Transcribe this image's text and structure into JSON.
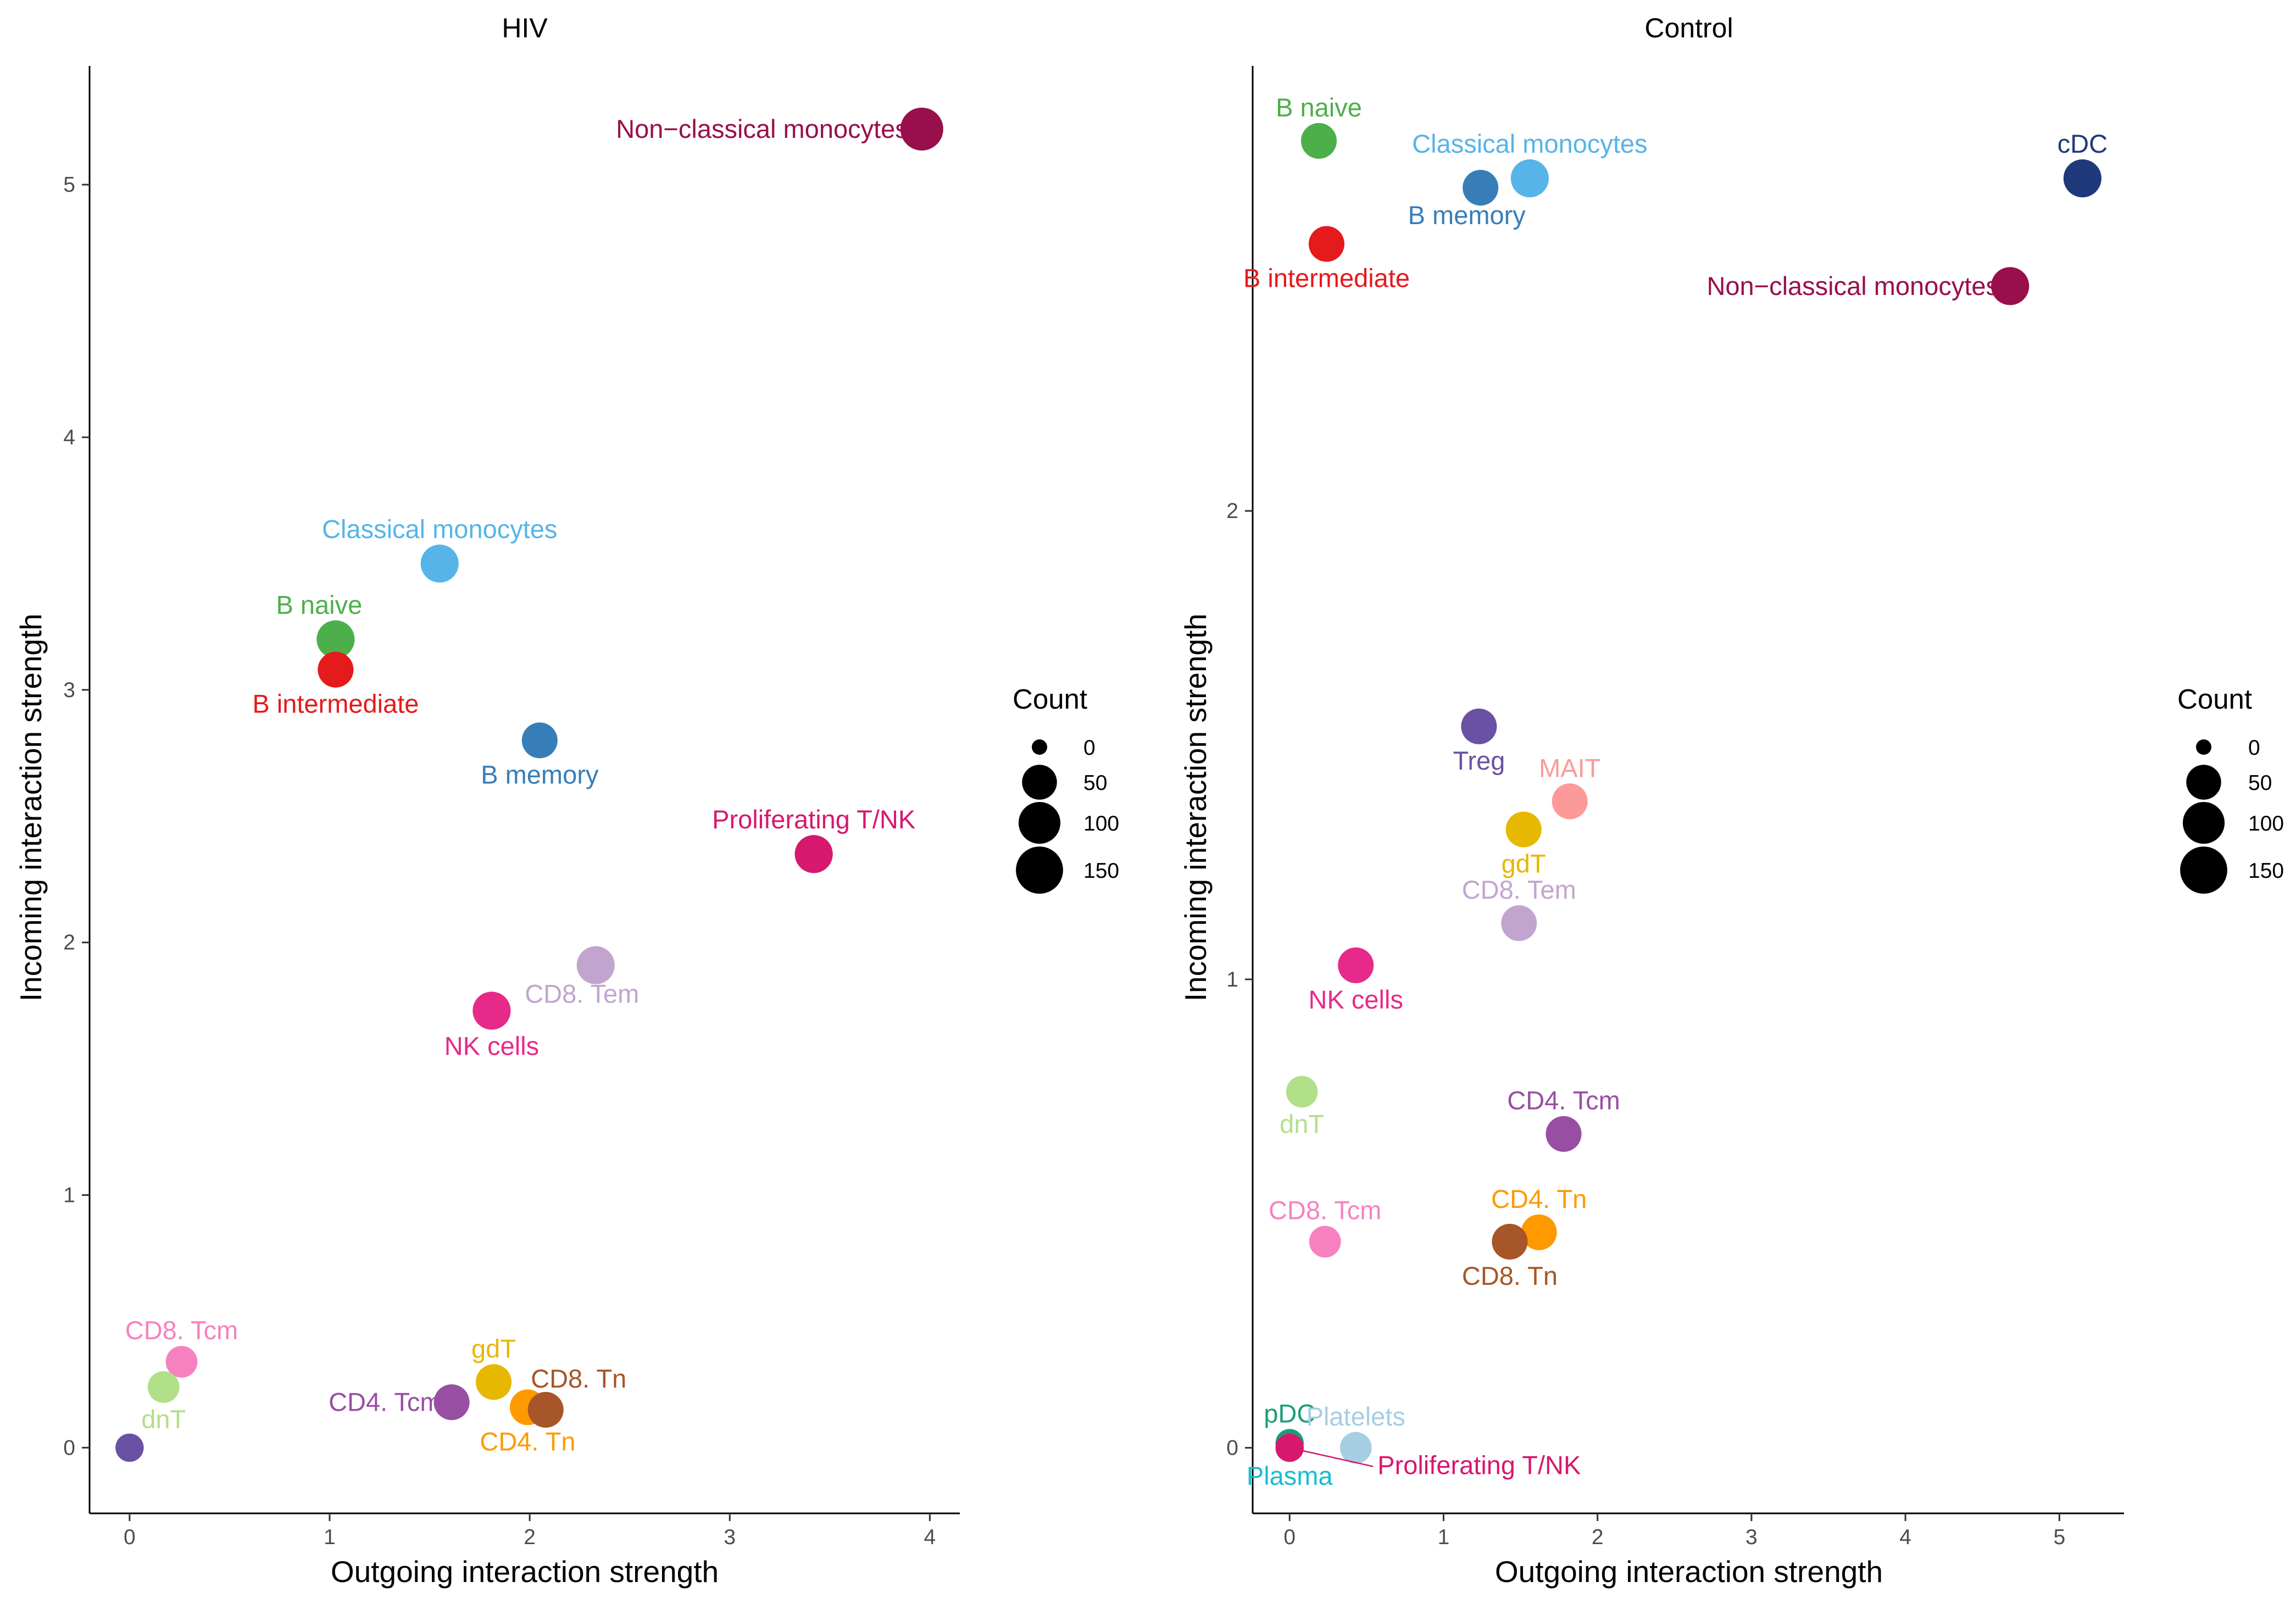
{
  "chart_data": [
    {
      "type": "scatter",
      "title": "HIV",
      "xlabel": "Outgoing interaction strength",
      "ylabel": "Incoming interaction strength",
      "xlim": [
        -0.2,
        4.15
      ],
      "ylim": [
        -0.26,
        5.47
      ],
      "x_ticks": [
        0,
        1,
        2,
        3,
        4
      ],
      "y_ticks": [
        0,
        1,
        2,
        3,
        4,
        5
      ],
      "points": [
        {
          "name": "Non−classical monocytes",
          "label": "Non−classical monocytes",
          "x": 3.96,
          "y": 5.22,
          "count": 150,
          "color": "#990F4B",
          "label_pos": "left"
        },
        {
          "name": "Classical monocytes",
          "label": "Classical monocytes",
          "x": 1.55,
          "y": 3.5,
          "count": 100,
          "color": "#56B4E9",
          "label_pos": "above"
        },
        {
          "name": "B naive",
          "label": "B naive",
          "x": 1.03,
          "y": 3.2,
          "count": 100,
          "color": "#4DAF4A",
          "label_pos": "above-left"
        },
        {
          "name": "B intermediate",
          "label": "B intermediate",
          "x": 1.03,
          "y": 3.08,
          "count": 80,
          "color": "#E41A1C",
          "label_pos": "below"
        },
        {
          "name": "B memory",
          "label": "B memory",
          "x": 2.05,
          "y": 2.8,
          "count": 80,
          "color": "#377EB8",
          "label_pos": "below"
        },
        {
          "name": "Proliferating T/NK",
          "label": "Proliferating T/NK",
          "x": 3.42,
          "y": 2.35,
          "count": 100,
          "color": "#D6186F",
          "label_pos": "above"
        },
        {
          "name": "CD8. Tem",
          "label": "CD8. Tem",
          "x": 2.33,
          "y": 1.91,
          "count": 100,
          "color": "#C2A5CF",
          "label_pos": "below-left"
        },
        {
          "name": "NK cells",
          "label": "NK cells",
          "x": 1.81,
          "y": 1.73,
          "count": 100,
          "color": "#E7298A",
          "label_pos": "below"
        },
        {
          "name": "CD8. Tcm",
          "label": "CD8. Tcm",
          "x": 0.26,
          "y": 0.34,
          "count": 50,
          "color": "#F781BF",
          "label_pos": "above"
        },
        {
          "name": "dnT",
          "label": "dnT",
          "x": 0.17,
          "y": 0.24,
          "count": 50,
          "color": "#B2DF8A",
          "label_pos": "below"
        },
        {
          "name": "Treg",
          "label": "",
          "x": 0.0,
          "y": 0.0,
          "count": 30,
          "color": "#6A51A3",
          "label_pos": "none"
        },
        {
          "name": "CD4. Tcm",
          "label": "CD4. Tcm",
          "x": 1.61,
          "y": 0.18,
          "count": 80,
          "color": "#984EA3",
          "label_pos": "left"
        },
        {
          "name": "gdT",
          "label": "gdT",
          "x": 1.82,
          "y": 0.26,
          "count": 80,
          "color": "#E6B800",
          "label_pos": "above"
        },
        {
          "name": "CD4. Tn",
          "label": "CD4. Tn",
          "x": 1.99,
          "y": 0.16,
          "count": 80,
          "color": "#FF9900",
          "label_pos": "below"
        },
        {
          "name": "CD8. Tn",
          "label": "CD8. Tn",
          "x": 2.08,
          "y": 0.15,
          "count": 80,
          "color": "#A65628",
          "label_pos": "above-right"
        }
      ]
    },
    {
      "type": "scatter",
      "title": "Control",
      "xlabel": "Outgoing interaction strength",
      "ylabel": "Incoming interaction strength",
      "xlim": [
        -0.24,
        5.42
      ],
      "ylim": [
        -0.14,
        2.95
      ],
      "x_ticks": [
        0,
        1,
        2,
        3,
        4,
        5
      ],
      "y_ticks": [
        0,
        1,
        2
      ],
      "points": [
        {
          "name": "B naive",
          "label": "B naive",
          "x": 0.19,
          "y": 2.79,
          "count": 80,
          "color": "#4DAF4A",
          "label_pos": "above"
        },
        {
          "name": "Classical monocytes",
          "label": "Classical monocytes",
          "x": 1.56,
          "y": 2.71,
          "count": 100,
          "color": "#56B4E9",
          "label_pos": "above"
        },
        {
          "name": "B memory",
          "label": "B memory",
          "x": 1.24,
          "y": 2.69,
          "count": 80,
          "color": "#377EB8",
          "label_pos": "below-left"
        },
        {
          "name": "cDC",
          "label": "cDC",
          "x": 5.15,
          "y": 2.71,
          "count": 100,
          "color": "#1F3A7A",
          "label_pos": "above"
        },
        {
          "name": "B intermediate",
          "label": "B intermediate",
          "x": 0.24,
          "y": 2.57,
          "count": 80,
          "color": "#E41A1C",
          "label_pos": "below"
        },
        {
          "name": "Non−classical monocytes",
          "label": "Non−classical monocytes",
          "x": 4.68,
          "y": 2.48,
          "count": 100,
          "color": "#990F4B",
          "label_pos": "left"
        },
        {
          "name": "Treg",
          "label": "Treg",
          "x": 1.23,
          "y": 1.54,
          "count": 80,
          "color": "#6A51A3",
          "label_pos": "below"
        },
        {
          "name": "MAIT",
          "label": "MAIT",
          "x": 1.82,
          "y": 1.38,
          "count": 80,
          "color": "#FB9A99",
          "label_pos": "above"
        },
        {
          "name": "gdT",
          "label": "gdT",
          "x": 1.52,
          "y": 1.32,
          "count": 80,
          "color": "#E6B800",
          "label_pos": "below"
        },
        {
          "name": "CD8. Tem",
          "label": "CD8. Tem",
          "x": 1.49,
          "y": 1.12,
          "count": 80,
          "color": "#C2A5CF",
          "label_pos": "above"
        },
        {
          "name": "NK cells",
          "label": "NK cells",
          "x": 0.43,
          "y": 1.03,
          "count": 80,
          "color": "#E7298A",
          "label_pos": "below"
        },
        {
          "name": "dnT",
          "label": "dnT",
          "x": 0.08,
          "y": 0.76,
          "count": 50,
          "color": "#B2DF8A",
          "label_pos": "below"
        },
        {
          "name": "CD4. Tcm",
          "label": "CD4. Tcm",
          "x": 1.78,
          "y": 0.67,
          "count": 80,
          "color": "#984EA3",
          "label_pos": "above"
        },
        {
          "name": "CD8. Tcm",
          "label": "CD8. Tcm",
          "x": 0.23,
          "y": 0.44,
          "count": 50,
          "color": "#F781BF",
          "label_pos": "above"
        },
        {
          "name": "CD4. Tn",
          "label": "CD4. Tn",
          "x": 1.62,
          "y": 0.46,
          "count": 80,
          "color": "#FF9900",
          "label_pos": "above"
        },
        {
          "name": "CD8. Tn",
          "label": "CD8. Tn",
          "x": 1.43,
          "y": 0.44,
          "count": 80,
          "color": "#A65628",
          "label_pos": "below"
        },
        {
          "name": "pDC",
          "label": "pDC",
          "x": 0.0,
          "y": 0.01,
          "count": 30,
          "color": "#1B9E77",
          "label_pos": "above"
        },
        {
          "name": "Plasma",
          "label": "Plasma",
          "x": 0.0,
          "y": 0.0,
          "count": 10,
          "color": "#17BECF",
          "label_pos": "below"
        },
        {
          "name": "Proliferating T/NK",
          "label": "Proliferating T/NK",
          "x": 0.0,
          "y": 0.0,
          "count": 30,
          "color": "#D6186F",
          "label_pos": "below-right-leader"
        },
        {
          "name": "Platelets",
          "label": "Platelets",
          "x": 0.43,
          "y": 0.0,
          "count": 50,
          "color": "#A6CEE3",
          "label_pos": "above"
        }
      ]
    }
  ],
  "legend": {
    "title": "Count",
    "entries": [
      {
        "label": "0",
        "value": 0
      },
      {
        "label": "50",
        "value": 50
      },
      {
        "label": "100",
        "value": 100
      },
      {
        "label": "150",
        "value": 150
      }
    ]
  }
}
